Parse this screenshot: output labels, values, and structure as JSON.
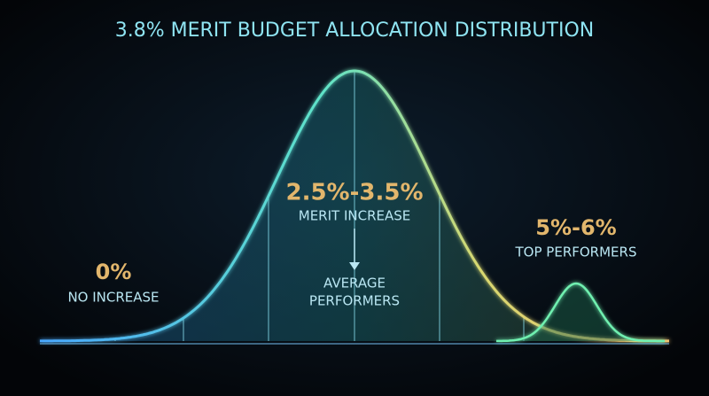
{
  "title": "3.8% MERIT BUDGET ALLOCATION DISTRIBUTION",
  "groups": [
    {
      "range": "0%",
      "label": "NO INCREASE"
    },
    {
      "range": "2.5%-3.5%",
      "label": "MERIT INCREASE",
      "note": [
        "AVERAGE",
        "PERFORMERS"
      ]
    },
    {
      "range": "5%-6%",
      "label": "TOP PERFORMERS"
    }
  ]
}
